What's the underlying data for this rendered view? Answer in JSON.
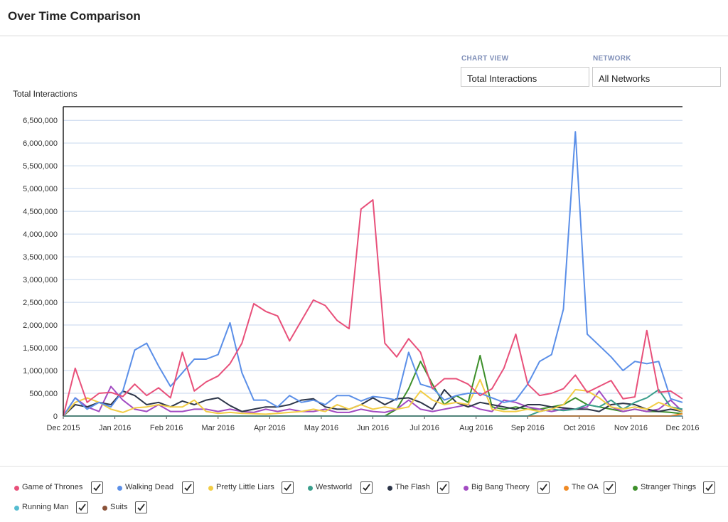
{
  "page": {
    "title": "Over Time Comparison"
  },
  "controls": {
    "chart_view": {
      "label": "CHART VIEW",
      "value": "Total Interactions"
    },
    "network": {
      "label": "NETWORK",
      "value": "All Networks"
    }
  },
  "chart_data": {
    "type": "line",
    "title": "",
    "ylabel": "Total Interactions",
    "xlabel": "",
    "ylim": [
      0,
      6800000
    ],
    "y_ticks": [
      0,
      500000,
      1000000,
      1500000,
      2000000,
      2500000,
      3000000,
      3500000,
      4000000,
      4500000,
      5000000,
      5500000,
      6000000,
      6500000
    ],
    "y_tick_labels": [
      "0",
      "500,000",
      "1,000,000",
      "1,500,000",
      "2,000,000",
      "2,500,000",
      "3,000,000",
      "3,500,000",
      "4,000,000",
      "4,500,000",
      "5,000,000",
      "5,500,000",
      "6,000,000",
      "6,500,000"
    ],
    "x_tick_labels": [
      "Dec 2015",
      "Jan 2016",
      "Feb 2016",
      "Mar 2016",
      "Apr 2016",
      "May 2016",
      "Jun 2016",
      "Jul 2016",
      "Aug 2016",
      "Sep 2016",
      "Oct 2016",
      "Nov 2016",
      "Dec 2016"
    ],
    "grid": true,
    "series": [
      {
        "name": "Game of Thrones",
        "color": "#e8507a",
        "values": [
          0,
          1050000,
          300000,
          500000,
          520000,
          430000,
          700000,
          450000,
          620000,
          400000,
          1400000,
          550000,
          750000,
          880000,
          1150000,
          1600000,
          2470000,
          2300000,
          2200000,
          1650000,
          2100000,
          2550000,
          2430000,
          2100000,
          1920000,
          4550000,
          4750000,
          1600000,
          1300000,
          1700000,
          1400000,
          600000,
          820000,
          820000,
          700000,
          450000,
          600000,
          1050000,
          1800000,
          700000,
          450000,
          500000,
          600000,
          900000,
          520000,
          650000,
          780000,
          380000,
          420000,
          1880000,
          520000,
          550000,
          380000
        ]
      },
      {
        "name": "Walking Dead",
        "color": "#5b8fe8",
        "values": [
          0,
          400000,
          150000,
          300000,
          200000,
          550000,
          1450000,
          1600000,
          1100000,
          650000,
          950000,
          1250000,
          1250000,
          1350000,
          2050000,
          950000,
          350000,
          350000,
          200000,
          450000,
          300000,
          350000,
          250000,
          450000,
          450000,
          330000,
          430000,
          400000,
          350000,
          1400000,
          700000,
          620000,
          350000,
          450000,
          500000,
          500000,
          400000,
          300000,
          350000,
          700000,
          1200000,
          1350000,
          2350000,
          6250000,
          1800000,
          1550000,
          1300000,
          1000000,
          1200000,
          1150000,
          1200000,
          380000,
          300000
        ]
      },
      {
        "name": "Pretty Little Liars",
        "color": "#f2cd45",
        "values": [
          0,
          300000,
          400000,
          300000,
          150000,
          80000,
          180000,
          200000,
          250000,
          200000,
          200000,
          350000,
          100000,
          60000,
          80000,
          60000,
          50000,
          40000,
          60000,
          80000,
          100000,
          150000,
          100000,
          250000,
          150000,
          250000,
          150000,
          200000,
          150000,
          200000,
          550000,
          350000,
          250000,
          300000,
          250000,
          800000,
          150000,
          100000,
          100000,
          150000,
          100000,
          150000,
          250000,
          580000,
          550000,
          400000,
          200000,
          150000,
          200000,
          150000,
          300000,
          200000,
          100000
        ]
      },
      {
        "name": "Westworld",
        "color": "#3a9e8c",
        "values": [
          0,
          0,
          0,
          0,
          0,
          0,
          0,
          0,
          0,
          0,
          0,
          0,
          0,
          0,
          0,
          0,
          0,
          0,
          0,
          0,
          0,
          0,
          0,
          0,
          0,
          0,
          0,
          0,
          0,
          0,
          0,
          0,
          0,
          0,
          0,
          0,
          0,
          0,
          0,
          0,
          100000,
          150000,
          120000,
          150000,
          250000,
          200000,
          350000,
          150000,
          300000,
          400000,
          580000,
          200000,
          150000
        ]
      },
      {
        "name": "The Flash",
        "color": "#2c3548",
        "values": [
          0,
          250000,
          200000,
          300000,
          250000,
          550000,
          450000,
          250000,
          300000,
          200000,
          330000,
          250000,
          350000,
          400000,
          230000,
          100000,
          150000,
          200000,
          200000,
          250000,
          350000,
          380000,
          200000,
          150000,
          150000,
          250000,
          400000,
          250000,
          380000,
          400000,
          300000,
          150000,
          580000,
          300000,
          200000,
          300000,
          250000,
          200000,
          150000,
          250000,
          250000,
          200000,
          180000,
          150000,
          150000,
          100000,
          250000,
          280000,
          250000,
          150000,
          100000,
          150000,
          100000
        ]
      },
      {
        "name": "Big Bang Theory",
        "color": "#a24bc2",
        "values": [
          0,
          400000,
          200000,
          100000,
          650000,
          350000,
          150000,
          100000,
          250000,
          100000,
          100000,
          150000,
          150000,
          100000,
          150000,
          100000,
          80000,
          150000,
          100000,
          150000,
          100000,
          100000,
          150000,
          80000,
          80000,
          150000,
          100000,
          80000,
          150000,
          350000,
          150000,
          100000,
          150000,
          200000,
          250000,
          150000,
          100000,
          350000,
          300000,
          200000,
          150000,
          100000,
          150000,
          150000,
          200000,
          550000,
          200000,
          100000,
          150000,
          100000,
          150000,
          350000,
          100000
        ]
      },
      {
        "name": "The OA",
        "color": "#f08a24",
        "values": [
          0,
          0,
          0,
          0,
          0,
          0,
          0,
          0,
          0,
          0,
          0,
          0,
          0,
          0,
          0,
          0,
          0,
          0,
          0,
          0,
          0,
          0,
          0,
          0,
          0,
          0,
          0,
          0,
          0,
          0,
          0,
          0,
          0,
          0,
          0,
          0,
          0,
          0,
          0,
          0,
          0,
          0,
          0,
          0,
          0,
          0,
          0,
          0,
          0,
          0,
          0,
          0,
          50000
        ]
      },
      {
        "name": "Stranger Things",
        "color": "#3d8f2a",
        "values": [
          0,
          0,
          0,
          0,
          0,
          0,
          0,
          0,
          0,
          0,
          0,
          0,
          0,
          0,
          0,
          0,
          0,
          0,
          0,
          0,
          0,
          0,
          0,
          0,
          0,
          0,
          0,
          0,
          150000,
          600000,
          1200000,
          700000,
          250000,
          450000,
          300000,
          1330000,
          200000,
          150000,
          200000,
          150000,
          150000,
          200000,
          250000,
          400000,
          250000,
          200000,
          150000,
          100000,
          150000,
          100000,
          100000,
          80000,
          50000
        ]
      },
      {
        "name": "Running Man",
        "color": "#56bcd0",
        "values": [
          0,
          0,
          0,
          0,
          0,
          0,
          0,
          0,
          0,
          0,
          0,
          0,
          0,
          0,
          0,
          0,
          0,
          0,
          0,
          0,
          0,
          0,
          0,
          0,
          0,
          0,
          0,
          0,
          0,
          0,
          0,
          0,
          0,
          0,
          0,
          0,
          0,
          0,
          0,
          0,
          0,
          0,
          0,
          0,
          0,
          0,
          0,
          0,
          0,
          0,
          0,
          0,
          0
        ]
      },
      {
        "name": "Suits",
        "color": "#8a5238",
        "values": [
          0,
          0,
          0,
          0,
          0,
          0,
          0,
          0,
          0,
          0,
          0,
          0,
          0,
          0,
          0,
          0,
          0,
          0,
          0,
          0,
          0,
          0,
          0,
          0,
          0,
          0,
          0,
          0,
          0,
          0,
          0,
          0,
          0,
          0,
          0,
          0,
          0,
          0,
          0,
          0,
          0,
          0,
          0,
          0,
          0,
          0,
          0,
          0,
          0,
          0,
          0,
          0,
          0
        ]
      }
    ]
  },
  "legend": {
    "items": [
      {
        "label": "Game of Thrones",
        "color": "#e8507a",
        "checked": true
      },
      {
        "label": "Walking Dead",
        "color": "#5b8fe8",
        "checked": true
      },
      {
        "label": "Pretty Little Liars",
        "color": "#f2cd45",
        "checked": true
      },
      {
        "label": "Westworld",
        "color": "#3a9e8c",
        "checked": true
      },
      {
        "label": "The Flash",
        "color": "#2c3548",
        "checked": true
      },
      {
        "label": "Big Bang Theory",
        "color": "#a24bc2",
        "checked": true
      },
      {
        "label": "The OA",
        "color": "#f08a24",
        "checked": true
      },
      {
        "label": "Stranger Things",
        "color": "#3d8f2a",
        "checked": true
      },
      {
        "label": "Running Man",
        "color": "#56bcd0",
        "checked": true
      },
      {
        "label": "Suits",
        "color": "#8a5238",
        "checked": true
      }
    ]
  }
}
